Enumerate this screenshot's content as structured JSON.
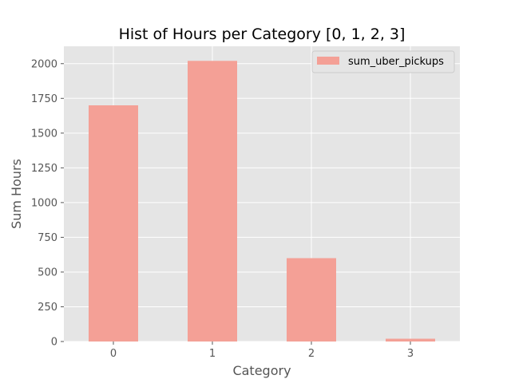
{
  "chart_data": {
    "type": "bar",
    "title": "Hist of Hours per Category [0, 1, 2, 3]",
    "xlabel": "Category",
    "ylabel": "Sum Hours",
    "categories": [
      "0",
      "1",
      "2",
      "3"
    ],
    "series": [
      {
        "name": "sum_uber_pickups",
        "values": [
          1700,
          2020,
          600,
          20
        ]
      }
    ],
    "ylim": [
      0,
      2125
    ],
    "yticks": [
      0,
      250,
      500,
      750,
      1000,
      1250,
      1500,
      1750,
      2000
    ],
    "grid": true,
    "legend_position": "top-right"
  },
  "colors": {
    "bar": "#f4a096",
    "plot_background": "#e5e5e5",
    "grid": "#ffffff",
    "tick_text": "#555555"
  }
}
